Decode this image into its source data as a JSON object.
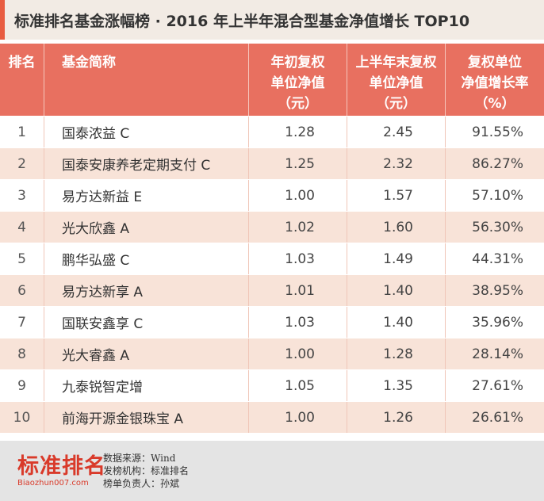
{
  "title": "标准排名基金涨幅榜 · 2016 年上半年混合型基金净值增长 TOP10",
  "table": {
    "headers": {
      "rank": "排名",
      "name": "基金简称",
      "start_nav": [
        "年初复权",
        "单位净值",
        "（元）"
      ],
      "end_nav": [
        "上半年末复权",
        "单位净值",
        "（元）"
      ],
      "growth": [
        "复权单位",
        "净值增长率",
        "（%）"
      ]
    },
    "rows": [
      {
        "rank": "1",
        "name": "国泰浓益 C",
        "start_nav": "1.28",
        "end_nav": "2.45",
        "growth": "91.55%"
      },
      {
        "rank": "2",
        "name": "国泰安康养老定期支付 C",
        "start_nav": "1.25",
        "end_nav": "2.32",
        "growth": "86.27%"
      },
      {
        "rank": "3",
        "name": "易方达新益 E",
        "start_nav": "1.00",
        "end_nav": "1.57",
        "growth": "57.10%"
      },
      {
        "rank": "4",
        "name": "光大欣鑫 A",
        "start_nav": "1.02",
        "end_nav": "1.60",
        "growth": "56.30%"
      },
      {
        "rank": "5",
        "name": "鹏华弘盛 C",
        "start_nav": "1.03",
        "end_nav": "1.49",
        "growth": "44.31%"
      },
      {
        "rank": "6",
        "name": "易方达新享 A",
        "start_nav": "1.01",
        "end_nav": "1.40",
        "growth": "38.95%"
      },
      {
        "rank": "7",
        "name": "国联安鑫享 C",
        "start_nav": "1.03",
        "end_nav": "1.40",
        "growth": "35.96%"
      },
      {
        "rank": "8",
        "name": "光大睿鑫 A",
        "start_nav": "1.00",
        "end_nav": "1.28",
        "growth": "28.14%"
      },
      {
        "rank": "9",
        "name": "九泰锐智定增",
        "start_nav": "1.05",
        "end_nav": "1.35",
        "growth": "27.61%"
      },
      {
        "rank": "10",
        "name": "前海开源金银珠宝 A",
        "start_nav": "1.00",
        "end_nav": "1.26",
        "growth": "26.61%"
      }
    ]
  },
  "footer": {
    "logo_zh": "标准排名",
    "logo_en": "Biaozhun007.com",
    "credits": [
      "数据来源：Wind",
      "发榜机构：标准排名",
      "榜单负责人：孙斌"
    ]
  },
  "colors": {
    "accent": "#e85c40",
    "header_bg": "#e87060",
    "row_alt": "#f8e3d8",
    "title_bg": "#f2ebe4",
    "footer_bg": "#e4e4e4",
    "logo_red": "#d93a2a"
  }
}
